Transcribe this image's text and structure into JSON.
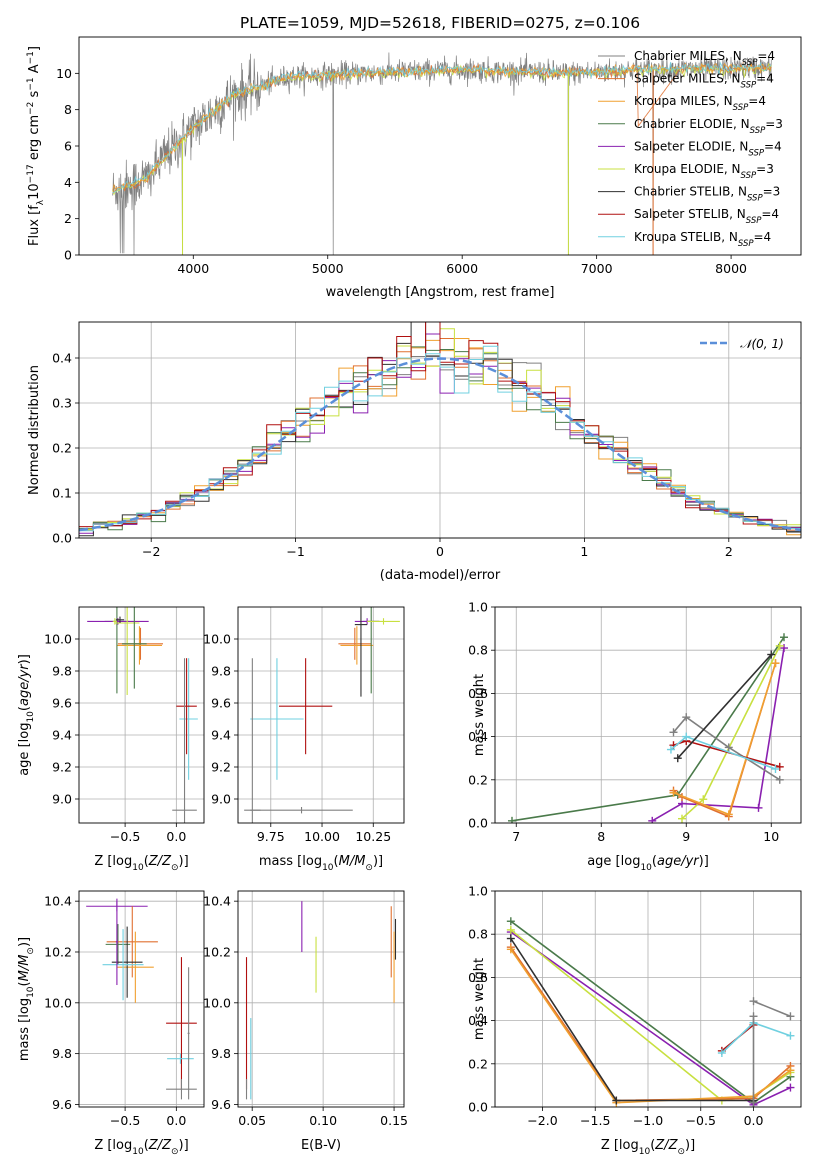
{
  "title": "PLATE=1059, MJD=52618, FIBERID=0275, z=0.106",
  "models": [
    {
      "label": "Chabrier MILES, N",
      "sub": "SSP",
      "val": "=4",
      "color": "#808080"
    },
    {
      "label": "Salpeter MILES, N",
      "sub": "SSP",
      "val": "=4",
      "color": "#e07030"
    },
    {
      "label": "Kroupa MILES, N",
      "sub": "SSP",
      "val": "=4",
      "color": "#f0a030"
    },
    {
      "label": "Chabrier ELODIE, N",
      "sub": "SSP",
      "val": "=3",
      "color": "#4a7a4a"
    },
    {
      "label": "Salpeter ELODIE, N",
      "sub": "SSP",
      "val": "=4",
      "color": "#8a20b0"
    },
    {
      "label": "Kroupa ELODIE, N",
      "sub": "SSP",
      "val": "=3",
      "color": "#c8e040"
    },
    {
      "label": "Chabrier STELIB, N",
      "sub": "SSP",
      "val": "=3",
      "color": "#303030"
    },
    {
      "label": "Salpeter STELIB, N",
      "sub": "SSP",
      "val": "=4",
      "color": "#b01010"
    },
    {
      "label": "Kroupa STELIB, N",
      "sub": "SSP",
      "val": "=4",
      "color": "#70d0e0"
    }
  ],
  "chart_data": [
    {
      "id": "spectrum",
      "type": "line",
      "xlabel": "wavelength [Angstrom, rest frame]",
      "ylabel": "Flux [f_lambda 1e-17 erg cm-2 s-1 A-1]",
      "xlim": [
        3150,
        8520
      ],
      "ylim": [
        0,
        12
      ],
      "xticks": [
        4000,
        5000,
        6000,
        7000,
        8000
      ],
      "yticks": [
        0,
        2,
        4,
        6,
        8,
        10
      ],
      "grid": false,
      "legend_placement": "right",
      "continuum_knots": {
        "x": [
          3400,
          3650,
          3800,
          4000,
          4300,
          4700,
          5200,
          6000,
          6800,
          7300,
          8300
        ],
        "y": [
          3.5,
          4.2,
          5.5,
          7.0,
          8.8,
          9.8,
          10.0,
          10.2,
          10.0,
          10.2,
          10.3
        ]
      },
      "drops": [
        {
          "x": 3560,
          "y": 0
        },
        {
          "x": 3920,
          "y": 0
        },
        {
          "x": 5040,
          "y": 0
        },
        {
          "x": 6790,
          "y": 0
        },
        {
          "x": 7420,
          "y": 0
        }
      ]
    },
    {
      "id": "residuals",
      "type": "histogram",
      "xlabel": "(data-model)/error",
      "ylabel": "Normed distribution",
      "xlim": [
        -2.5,
        2.5
      ],
      "ylim": [
        0,
        0.48
      ],
      "xticks": [
        -2,
        -1,
        0,
        1,
        2
      ],
      "xtick_labels": [
        "−2",
        "−1",
        "0",
        "1",
        "2"
      ],
      "yticks": [
        0.0,
        0.1,
        0.2,
        0.3,
        0.4
      ],
      "ytick_labels": [
        "0.0",
        "0.1",
        "0.2",
        "0.3",
        "0.4"
      ],
      "grid": true,
      "bin_width": 0.1,
      "reference": {
        "name": "N(0,1)",
        "color": "#5b8fd9",
        "style": "dashed"
      }
    },
    {
      "id": "Z-age",
      "type": "scatter",
      "xlabel": "Z [log10(Z/Zsun)]",
      "ylabel": "age [log10(age/yr)]",
      "xlim": [
        -0.95,
        0.27
      ],
      "ylim": [
        8.85,
        10.2
      ],
      "xticks": [
        -0.5,
        0.0
      ],
      "xtick_labels": [
        "−0.5",
        "0.0"
      ],
      "yticks": [
        9.0,
        9.2,
        9.4,
        9.6,
        9.8,
        10.0
      ],
      "ytick_labels": [
        "9.0",
        "9.2",
        "9.4",
        "9.6",
        "9.8",
        "10.0"
      ],
      "grid": true,
      "points": [
        {
          "m": 1,
          "x": -0.35,
          "y": 9.97,
          "xe": 0.22,
          "ye": 0.1
        },
        {
          "m": 2,
          "x": -0.36,
          "y": 9.96,
          "xe": 0.22,
          "ye": 0.12
        },
        {
          "m": 3,
          "x": -0.58,
          "y": 10.11,
          "xe": 0.12,
          "ye": 0.45
        },
        {
          "m": 4,
          "x": -0.57,
          "y": 10.11,
          "xe": 0.3,
          "ye": 0.02
        },
        {
          "m": 5,
          "x": -0.48,
          "y": 10.1,
          "xe": 0.12,
          "ye": 0.45
        },
        {
          "m": 6,
          "x": -0.55,
          "y": 10.12,
          "xe": 0.04,
          "ye": 0.02
        },
        {
          "m": 8,
          "x": 0.12,
          "y": 9.5,
          "xe": 0.09,
          "ye": 0.38
        },
        {
          "m": 7,
          "x": 0.1,
          "y": 9.58,
          "xe": 0.1,
          "ye": 0.3
        },
        {
          "m": 0,
          "x": 0.08,
          "y": 8.93,
          "xe": 0.12,
          "ye": 0.95
        },
        {
          "m": 5,
          "x": -0.6,
          "y": 10.11,
          "xe": 0.02,
          "ye": 0.02
        },
        {
          "m": 3,
          "x": -0.41,
          "y": 9.97,
          "xe": 0.12,
          "ye": 0.28
        }
      ]
    },
    {
      "id": "mass-age",
      "type": "scatter",
      "xlabel": "mass [log10(M/Msun)]",
      "ylabel": "",
      "xlim": [
        9.59,
        10.4
      ],
      "ylim": [
        8.85,
        10.2
      ],
      "xticks": [
        9.75,
        10.0,
        10.25
      ],
      "xtick_labels": [
        "9.75",
        "10.00",
        "10.25"
      ],
      "yticks": [
        9.0,
        9.2,
        9.4,
        9.6,
        9.8,
        10.0
      ],
      "ytick_labels": [
        "9.0",
        "9.2",
        "9.4",
        "9.6",
        "9.8",
        "10.0"
      ],
      "grid": true,
      "points": [
        {
          "m": 1,
          "x": 10.16,
          "y": 9.97,
          "xe": 0.08,
          "ye": 0.1
        },
        {
          "m": 2,
          "x": 10.17,
          "y": 9.96,
          "xe": 0.08,
          "ye": 0.12
        },
        {
          "m": 3,
          "x": 10.24,
          "y": 10.11,
          "xe": 0.04,
          "ye": 0.45
        },
        {
          "m": 4,
          "x": 10.22,
          "y": 10.11,
          "xe": 0.06,
          "ye": 0.02
        },
        {
          "m": 5,
          "x": 10.3,
          "y": 10.11,
          "xe": 0.08,
          "ye": 0.02
        },
        {
          "m": 6,
          "x": 10.19,
          "y": 10.09,
          "xe": 0.03,
          "ye": 0.45
        },
        {
          "m": 8,
          "x": 9.78,
          "y": 9.5,
          "xe": 0.13,
          "ye": 0.38
        },
        {
          "m": 7,
          "x": 9.92,
          "y": 9.58,
          "xe": 0.13,
          "ye": 0.3
        },
        {
          "m": 0,
          "x": 9.66,
          "y": 8.93,
          "xe": 0.04,
          "ye": 0.95
        },
        {
          "m": 0,
          "x": 9.9,
          "y": 8.93,
          "xe": 0.25,
          "ye": 0.02
        }
      ]
    },
    {
      "id": "age-weight",
      "type": "line",
      "xlabel": "age [log10(age/yr)]",
      "ylabel": "mass weight",
      "xlim": [
        6.75,
        10.35
      ],
      "ylim": [
        0,
        1.0
      ],
      "xticks": [
        7,
        8,
        9,
        10
      ],
      "yticks": [
        0.0,
        0.2,
        0.4,
        0.6,
        0.8,
        1.0
      ],
      "ytick_labels": [
        "0.0",
        "0.2",
        "0.4",
        "0.6",
        "0.8",
        "1.0"
      ],
      "grid": true,
      "series": [
        {
          "m": 3,
          "x": [
            6.95,
            8.9,
            10.15
          ],
          "y": [
            0.01,
            0.13,
            0.86
          ]
        },
        {
          "m": 4,
          "x": [
            8.6,
            8.95,
            9.85,
            10.15
          ],
          "y": [
            0.01,
            0.09,
            0.07,
            0.81
          ]
        },
        {
          "m": 5,
          "x": [
            8.95,
            9.2,
            10.1
          ],
          "y": [
            0.02,
            0.11,
            0.82
          ]
        },
        {
          "m": 1,
          "x": [
            8.85,
            8.95,
            9.5,
            10.05
          ],
          "y": [
            0.15,
            0.12,
            0.03,
            0.74
          ]
        },
        {
          "m": 2,
          "x": [
            8.85,
            9.5,
            10.05
          ],
          "y": [
            0.14,
            0.04,
            0.74
          ]
        },
        {
          "m": 0,
          "x": [
            8.85,
            9.0,
            9.5,
            10.1
          ],
          "y": [
            0.42,
            0.49,
            0.35,
            0.2
          ]
        },
        {
          "m": 7,
          "x": [
            8.85,
            9.0,
            10.1
          ],
          "y": [
            0.36,
            0.38,
            0.26
          ]
        },
        {
          "m": 8,
          "x": [
            8.82,
            9.0,
            10.05
          ],
          "y": [
            0.34,
            0.4,
            0.25
          ]
        },
        {
          "m": 6,
          "x": [
            8.9,
            10.0
          ],
          "y": [
            0.3,
            0.78
          ]
        }
      ]
    },
    {
      "id": "Z-mass",
      "type": "scatter",
      "xlabel": "Z [log10(Z/Zsun)]",
      "ylabel": "mass [log10(M/Msun)]",
      "xlim": [
        -0.95,
        0.27
      ],
      "ylim": [
        9.59,
        10.44
      ],
      "xticks": [
        -0.5,
        0.0
      ],
      "xtick_labels": [
        "−0.5",
        "0.0"
      ],
      "yticks": [
        9.6,
        9.8,
        10.0,
        10.2,
        10.4
      ],
      "ytick_labels": [
        "9.6",
        "9.8",
        "10.0",
        "10.2",
        "10.4"
      ],
      "grid": true,
      "points": [
        {
          "m": 4,
          "x": -0.58,
          "y": 10.38,
          "xe": 0.3,
          "ye": 0.02
        },
        {
          "m": 3,
          "x": -0.57,
          "y": 10.23,
          "xe": 0.12,
          "ye": 0.08
        },
        {
          "m": 1,
          "x": -0.43,
          "y": 10.24,
          "xe": 0.25,
          "ye": 0.14
        },
        {
          "m": 2,
          "x": -0.4,
          "y": 10.14,
          "xe": 0.18,
          "ye": 0.14
        },
        {
          "m": 6,
          "x": -0.48,
          "y": 10.16,
          "xe": 0.15,
          "ye": 0.14
        },
        {
          "m": 8,
          "x": -0.52,
          "y": 10.15,
          "xe": 0.2,
          "ye": 0.14
        },
        {
          "m": 7,
          "x": 0.05,
          "y": 9.92,
          "xe": 0.15,
          "ye": 0.26
        },
        {
          "m": 8,
          "x": 0.04,
          "y": 9.78,
          "xe": 0.13,
          "ye": 0.02
        },
        {
          "m": 0,
          "x": 0.05,
          "y": 9.66,
          "xe": 0.15,
          "ye": 0.04
        },
        {
          "m": 0,
          "x": 0.12,
          "y": 9.88,
          "xe": 0.01,
          "ye": 0.26
        },
        {
          "m": 4,
          "x": -0.58,
          "y": 10.24,
          "xe": 0.01,
          "ye": 0.17
        }
      ]
    },
    {
      "id": "EBV-mass",
      "type": "scatter",
      "xlabel": "E(B-V)",
      "ylabel": "",
      "xlim": [
        0.04,
        0.157
      ],
      "ylim": [
        9.59,
        10.44
      ],
      "xticks": [
        0.05,
        0.1,
        0.15
      ],
      "xtick_labels": [
        "0.05",
        "0.10",
        "0.15"
      ],
      "yticks": [
        9.6,
        9.8,
        10.0,
        10.2,
        10.4
      ],
      "ytick_labels": [
        "9.6",
        "9.8",
        "10.0",
        "10.2",
        "10.4"
      ],
      "grid": true,
      "points": [
        {
          "m": 7,
          "x": 0.046,
          "y": 9.92,
          "xe": 0,
          "ye": 0.26
        },
        {
          "m": 8,
          "x": 0.049,
          "y": 9.78,
          "xe": 0,
          "ye": 0.16
        },
        {
          "m": 0,
          "x": 0.046,
          "y": 9.66,
          "xe": 0,
          "ye": 0.04
        },
        {
          "m": 4,
          "x": 0.085,
          "y": 10.3,
          "xe": 0,
          "ye": 0.1
        },
        {
          "m": 5,
          "x": 0.095,
          "y": 10.15,
          "xe": 0,
          "ye": 0.11
        },
        {
          "m": 1,
          "x": 0.148,
          "y": 10.24,
          "xe": 0,
          "ye": 0.14
        },
        {
          "m": 2,
          "x": 0.15,
          "y": 10.14,
          "xe": 0,
          "ye": 0.14
        },
        {
          "m": 6,
          "x": 0.151,
          "y": 10.25,
          "xe": 0,
          "ye": 0.08
        }
      ]
    },
    {
      "id": "Z-weight",
      "type": "line",
      "xlabel": "Z [log10(Z/Zsun)]",
      "ylabel": "mass weight",
      "xlim": [
        -2.45,
        0.45
      ],
      "ylim": [
        0,
        1.0
      ],
      "xticks": [
        -2.0,
        -1.5,
        -1.0,
        -0.5,
        0.0
      ],
      "xtick_labels": [
        "−2.0",
        "−1.5",
        "−1.0",
        "−0.5",
        "0.0"
      ],
      "yticks": [
        0.0,
        0.2,
        0.4,
        0.6,
        0.8,
        1.0
      ],
      "ytick_labels": [
        "0.0",
        "0.2",
        "0.4",
        "0.6",
        "0.8",
        "1.0"
      ],
      "grid": true,
      "series": [
        {
          "m": 3,
          "x": [
            -2.3,
            0.0,
            0.35
          ],
          "y": [
            0.86,
            0.02,
            0.14
          ]
        },
        {
          "m": 4,
          "x": [
            -2.3,
            0.0,
            0.35
          ],
          "y": [
            0.81,
            0.01,
            0.09
          ]
        },
        {
          "m": 5,
          "x": [
            -2.3,
            -0.3,
            0.0,
            0.35
          ],
          "y": [
            0.82,
            0.03,
            0.05,
            0.16
          ]
        },
        {
          "m": 1,
          "x": [
            -2.3,
            -1.3,
            0.0,
            0.35
          ],
          "y": [
            0.74,
            0.03,
            0.04,
            0.19
          ]
        },
        {
          "m": 2,
          "x": [
            -2.3,
            -1.3,
            0.0,
            0.35
          ],
          "y": [
            0.73,
            0.02,
            0.05,
            0.17
          ]
        },
        {
          "m": 6,
          "x": [
            -2.3,
            -1.3,
            0.0
          ],
          "y": [
            0.78,
            0.03,
            0.03
          ]
        },
        {
          "m": 0,
          "x": [
            0.0,
            0.35
          ],
          "y": [
            0.49,
            0.42
          ]
        },
        {
          "m": 7,
          "x": [
            -0.3,
            0.0
          ],
          "y": [
            0.26,
            0.38
          ]
        },
        {
          "m": 8,
          "x": [
            -0.3,
            0.0,
            0.35
          ],
          "y": [
            0.25,
            0.39,
            0.33
          ]
        },
        {
          "m": 0,
          "x": [
            0.0,
            0.0
          ],
          "y": [
            0.02,
            0.42
          ]
        }
      ]
    }
  ]
}
